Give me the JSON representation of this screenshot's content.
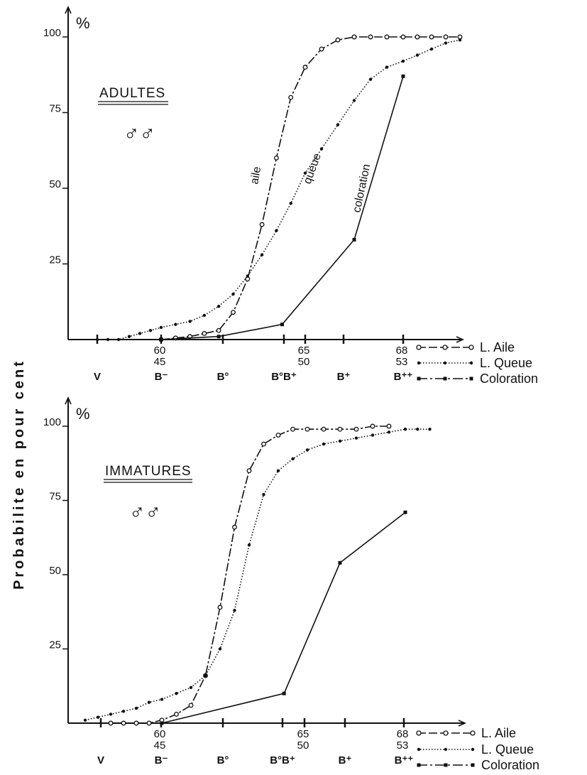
{
  "y_axis_title": "Probabilite en pour cent",
  "legend": [
    {
      "label": "L. Aile",
      "style": "open-circle-dash"
    },
    {
      "label": "L. Queue",
      "style": "filled-dot-dotted"
    },
    {
      "label": "Coloration",
      "style": "square-dash-dot"
    }
  ],
  "chart_data": [
    {
      "type": "line",
      "title": "ADULTES",
      "subtitle": "♂♂",
      "ylabel": "%",
      "ylim": [
        0,
        100
      ],
      "yticks": [
        100,
        75,
        50,
        25
      ],
      "x_ticks": [
        {
          "upper": "",
          "lower": "",
          "category": "V"
        },
        {
          "upper": "60",
          "lower": "45",
          "category": "B⁻"
        },
        {
          "upper": "",
          "lower": "",
          "category": "B°"
        },
        {
          "upper": "",
          "lower": "",
          "category": "B°B⁺"
        },
        {
          "upper": "65",
          "lower": "50",
          "category": ""
        },
        {
          "upper": "",
          "lower": "",
          "category": "B⁺"
        },
        {
          "upper": "68",
          "lower": "53",
          "category": "B⁺⁺"
        }
      ],
      "curve_labels": {
        "aile": "aile",
        "queue": "queue",
        "coloration": "coloration"
      },
      "series": [
        {
          "name": "L. Aile",
          "marker": "open-circle",
          "color": "#111111",
          "points": [
            [
              60,
              0
            ],
            [
              60.5,
              0.5
            ],
            [
              61,
              1
            ],
            [
              61.5,
              2
            ],
            [
              62,
              3
            ],
            [
              62.5,
              9
            ],
            [
              63,
              20
            ],
            [
              63.5,
              38
            ],
            [
              64,
              60
            ],
            [
              64.5,
              80
            ],
            [
              65,
              90
            ],
            [
              65.5,
              96
            ],
            [
              66,
              99
            ],
            [
              66.5,
              100
            ],
            [
              67,
              100
            ],
            [
              67.5,
              100
            ],
            [
              68,
              100
            ],
            [
              68.5,
              100
            ],
            [
              69,
              100
            ],
            [
              69.5,
              100
            ],
            [
              70,
              100
            ]
          ]
        },
        {
          "name": "L. Queue",
          "marker": "filled-dot",
          "color": "#111111",
          "points": [
            [
              57,
              0
            ],
            [
              57.5,
              0
            ],
            [
              58,
              0
            ],
            [
              58.5,
              1
            ],
            [
              59,
              2
            ],
            [
              59.5,
              3
            ],
            [
              60,
              4
            ],
            [
              60.5,
              5
            ],
            [
              61,
              6
            ],
            [
              61.5,
              8
            ],
            [
              62,
              11
            ],
            [
              62.5,
              15
            ],
            [
              63,
              21
            ],
            [
              63.5,
              28
            ],
            [
              64,
              36
            ],
            [
              64.5,
              45
            ],
            [
              65,
              55
            ],
            [
              65.5,
              63
            ],
            [
              66,
              71
            ],
            [
              66.5,
              79
            ],
            [
              67,
              86
            ],
            [
              67.5,
              90
            ],
            [
              68,
              92
            ],
            [
              68.5,
              94
            ],
            [
              69,
              96
            ],
            [
              69.5,
              98
            ],
            [
              70,
              99
            ]
          ]
        },
        {
          "name": "Coloration",
          "marker": "square",
          "color": "#111111",
          "points": [
            [
              60,
              0
            ],
            [
              62,
              1
            ],
            [
              64.2,
              5
            ],
            [
              66.5,
              33
            ],
            [
              68,
              87
            ]
          ]
        }
      ]
    },
    {
      "type": "line",
      "title": "IMMATURES",
      "subtitle": "♂♂",
      "ylabel": "%",
      "ylim": [
        0,
        100
      ],
      "yticks": [
        100,
        75,
        50,
        25
      ],
      "x_ticks": [
        {
          "upper": "",
          "lower": "",
          "category": "V"
        },
        {
          "upper": "60",
          "lower": "45",
          "category": "B⁻"
        },
        {
          "upper": "",
          "lower": "",
          "category": "B°"
        },
        {
          "upper": "",
          "lower": "",
          "category": "B°B⁺"
        },
        {
          "upper": "65",
          "lower": "50",
          "category": ""
        },
        {
          "upper": "",
          "lower": "",
          "category": "B⁺"
        },
        {
          "upper": "68",
          "lower": "53",
          "category": "B⁺⁺"
        }
      ],
      "series": [
        {
          "name": "L. Aile",
          "marker": "open-circle",
          "color": "#111111",
          "points": [
            [
              58,
              0
            ],
            [
              58.5,
              0
            ],
            [
              59,
              0
            ],
            [
              59.5,
              0
            ],
            [
              60,
              1
            ],
            [
              60.5,
              3
            ],
            [
              61,
              6
            ],
            [
              61.5,
              16
            ],
            [
              62,
              39
            ],
            [
              62.5,
              66
            ],
            [
              63,
              85
            ],
            [
              63.5,
              94
            ],
            [
              64,
              97
            ],
            [
              64.5,
              99
            ],
            [
              65,
              99
            ],
            [
              65.5,
              99
            ],
            [
              66,
              99
            ],
            [
              66.5,
              99
            ],
            [
              67,
              100
            ],
            [
              67.5,
              100
            ]
          ]
        },
        {
          "name": "L. Queue",
          "marker": "filled-dot",
          "color": "#111111",
          "points": [
            [
              57,
              1
            ],
            [
              57.5,
              2
            ],
            [
              58,
              3
            ],
            [
              58.5,
              4
            ],
            [
              59,
              5
            ],
            [
              59.5,
              7
            ],
            [
              60,
              8
            ],
            [
              60.5,
              10
            ],
            [
              61,
              12
            ],
            [
              61.5,
              16
            ],
            [
              62,
              25
            ],
            [
              62.5,
              38
            ],
            [
              63,
              60
            ],
            [
              63.5,
              77
            ],
            [
              64,
              85
            ],
            [
              64.5,
              89
            ],
            [
              65,
              92
            ],
            [
              65.5,
              94
            ],
            [
              66,
              95
            ],
            [
              66.5,
              96
            ],
            [
              67,
              97
            ],
            [
              67.5,
              98
            ],
            [
              68,
              99
            ],
            [
              68.5,
              99
            ],
            [
              69,
              99
            ]
          ]
        },
        {
          "name": "Coloration",
          "marker": "square",
          "color": "#111111",
          "points": [
            [
              60,
              0
            ],
            [
              64.2,
              10
            ],
            [
              66,
              54
            ],
            [
              68,
              71
            ]
          ]
        }
      ]
    }
  ]
}
